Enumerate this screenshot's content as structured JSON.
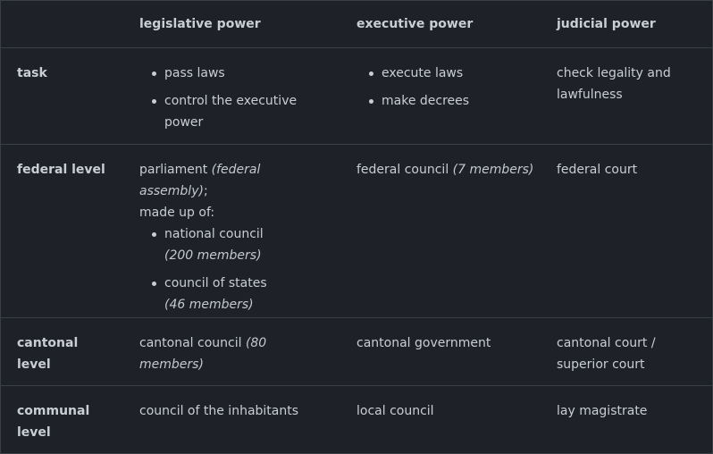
{
  "table": {
    "headers": [
      "",
      "legislative power",
      "executive power",
      "judicial power"
    ],
    "rows": {
      "task": {
        "label": "task",
        "legislative": [
          "pass laws",
          "control the executive power"
        ],
        "executive": [
          "execute laws",
          "make decrees"
        ],
        "judicial": "check legality and lawfulness"
      },
      "federal": {
        "label": "federal level",
        "legislative_intro": "parliament",
        "legislative_intro_em": "(federal assembly)",
        "legislative_intro_tail": ";",
        "legislative_intro_2": "made up of:",
        "legislative_items": [
          {
            "text": "national council",
            "em": "(200 members)"
          },
          {
            "text": "council of states",
            "em": "(46 members)"
          }
        ],
        "executive": "federal council",
        "executive_em": "(7 members)",
        "judicial": "federal court"
      },
      "cantonal": {
        "label_1": "cantonal",
        "label_2": "level",
        "legislative": "cantonal council",
        "legislative_em_1": "(80",
        "legislative_em_2": "members)",
        "executive": "cantonal government",
        "judicial_1": "cantonal court /",
        "judicial_2": "superior court"
      },
      "communal": {
        "label_1": "communal",
        "label_2": "level",
        "legislative": "council of the inhabitants",
        "executive": "local council",
        "judicial": "lay magistrate"
      }
    }
  }
}
